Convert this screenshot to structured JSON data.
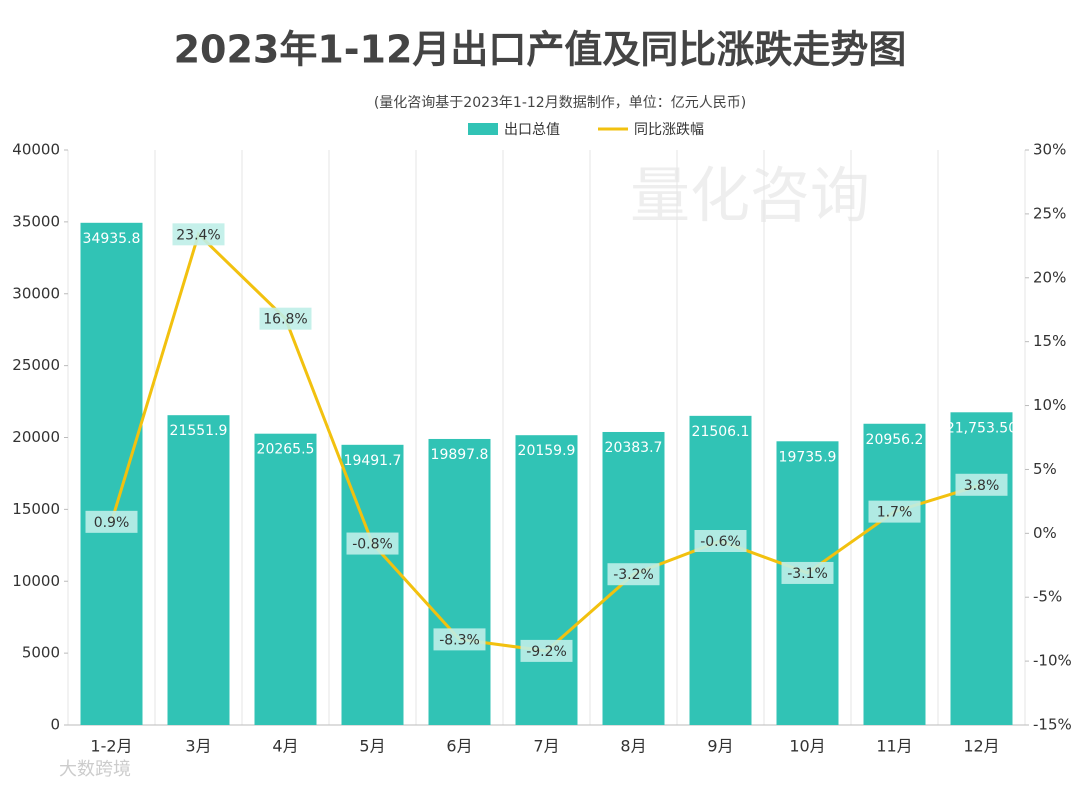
{
  "chart_data": {
    "type": "bar-line",
    "title": "2023年1-12月出口产值及同比涨跌走势图",
    "subtitle": "(量化咨询基于2023年1-12月数据制作，单位：亿元人民币)",
    "watermark": "量化咨询",
    "source_logo": "大数跨境",
    "categories": [
      "1-2月",
      "3月",
      "4月",
      "5月",
      "6月",
      "7月",
      "8月",
      "9月",
      "10月",
      "11月",
      "12月"
    ],
    "series": [
      {
        "name": "出口总值",
        "type": "bar",
        "color": "#31c3b5",
        "values": [
          34935.8,
          21551.9,
          20265.5,
          19491.7,
          19897.8,
          20159.9,
          20383.7,
          21506.1,
          19735.9,
          20956.2,
          21753.5
        ],
        "value_labels": [
          "34935.8",
          "21551.9",
          "20265.5",
          "19491.7",
          "19897.8",
          "20159.9",
          "20383.7",
          "21506.1",
          "19735.9",
          "20956.2",
          "21,753.50"
        ]
      },
      {
        "name": "同比涨跌幅",
        "type": "line",
        "axis": "y2",
        "color": "#f2c10f",
        "values": [
          0.9,
          23.4,
          16.8,
          -0.8,
          -8.3,
          -9.2,
          -3.2,
          -0.6,
          -3.1,
          1.7,
          3.8
        ],
        "value_labels": [
          "0.9%",
          "23.4%",
          "16.8%",
          "-0.8%",
          "-8.3%",
          "-9.2%",
          "-3.2%",
          "-0.6%",
          "-3.1%",
          "1.7%",
          "3.8%"
        ]
      }
    ],
    "ylim": [
      0,
      40000
    ],
    "yticks": [
      0,
      5000,
      10000,
      15000,
      20000,
      25000,
      30000,
      35000,
      40000
    ],
    "y2lim": [
      -15,
      30
    ],
    "y2ticks": [
      {
        "value": -15,
        "label": "-15%"
      },
      {
        "value": -10,
        "label": "-10%"
      },
      {
        "value": -5,
        "label": "-5%"
      },
      {
        "value": 0,
        "label": "0%"
      },
      {
        "value": 5,
        "label": "5%"
      },
      {
        "value": 10,
        "label": "10%"
      },
      {
        "value": 15,
        "label": "15%"
      },
      {
        "value": 20,
        "label": "20%"
      },
      {
        "value": 25,
        "label": "25%"
      },
      {
        "value": 30,
        "label": "30%"
      }
    ],
    "legend": "top"
  }
}
